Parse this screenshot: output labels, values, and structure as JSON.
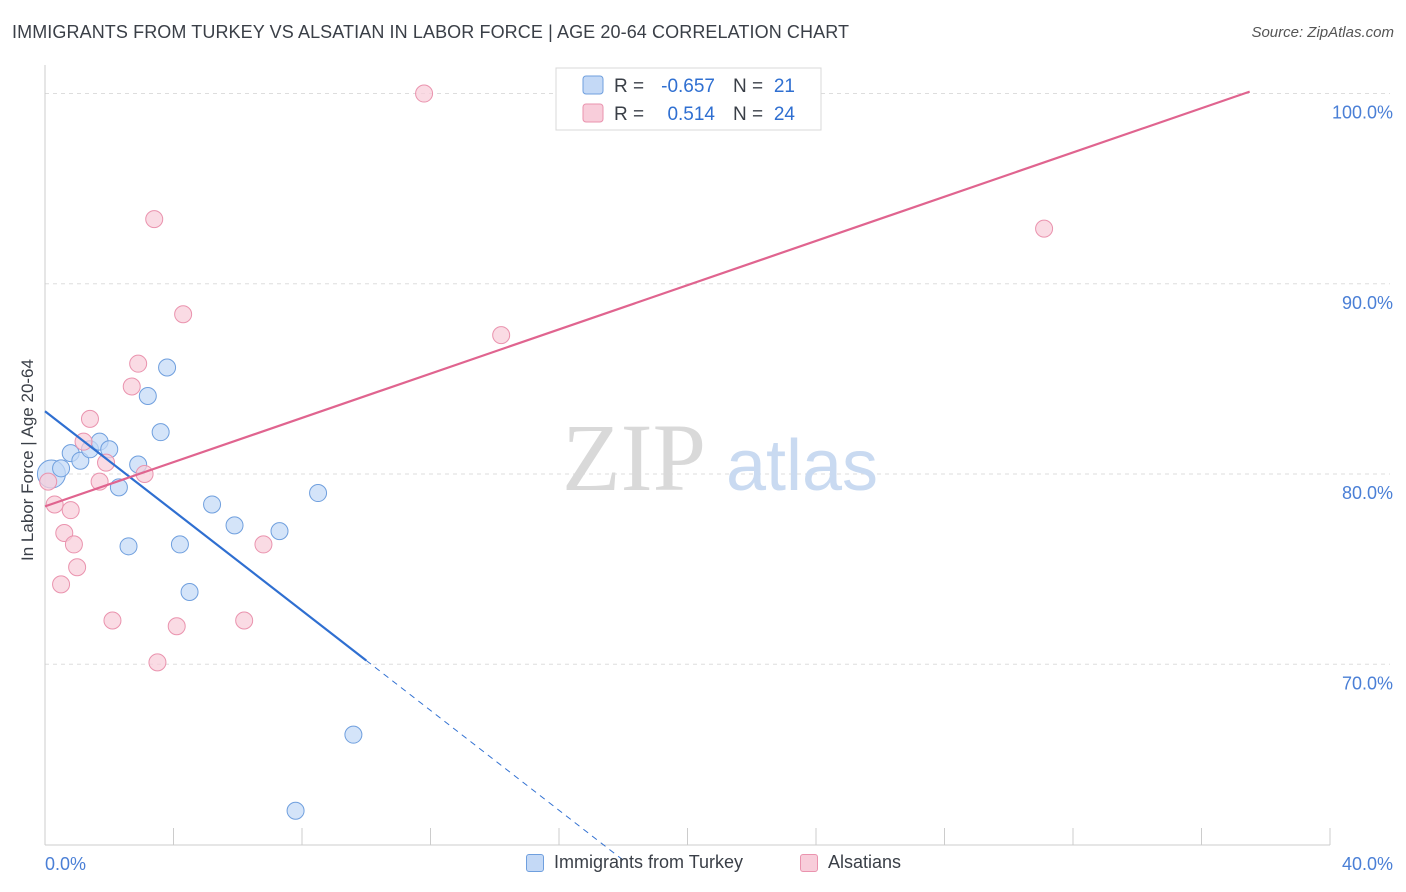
{
  "title": "IMMIGRANTS FROM TURKEY VS ALSATIAN IN LABOR FORCE | AGE 20-64 CORRELATION CHART",
  "source": "Source: ZipAtlas.com",
  "watermark": {
    "zip": "ZIP",
    "atlas": "atlas"
  },
  "colors": {
    "blue_fill": "#c4d9f6",
    "blue_stroke": "#6f9fde",
    "blue_line": "#2f6fd1",
    "pink_fill": "#f8cdda",
    "pink_stroke": "#ea93ae",
    "pink_line": "#e0648f",
    "tick_text": "#4a7fd6",
    "grid": "#dddddd"
  },
  "legend_box": {
    "rows": [
      {
        "r_label": "R =",
        "r_value": "-0.657",
        "n_label": "N =",
        "n_value": "21",
        "series": "blue"
      },
      {
        "r_label": "R =",
        "r_value": "0.514",
        "n_label": "N =",
        "n_value": "24",
        "series": "pink"
      }
    ]
  },
  "chart_data": {
    "type": "scatter",
    "title": "IMMIGRANTS FROM TURKEY VS ALSATIAN IN LABOR FORCE | AGE 20-64 CORRELATION CHART",
    "xlabel": "",
    "ylabel": "In Labor Force | Age 20-64",
    "xlim": [
      0,
      40
    ],
    "ylim": [
      60.5,
      101.5
    ],
    "x_tick_labels": [
      {
        "value": 0,
        "label": "0.0%"
      },
      {
        "value": 40,
        "label": "40.0%"
      }
    ],
    "y_tick_labels": [
      {
        "value": 100,
        "label": "100.0%"
      },
      {
        "value": 90,
        "label": "90.0%"
      },
      {
        "value": 80,
        "label": "80.0%"
      },
      {
        "value": 70,
        "label": "70.0%"
      }
    ],
    "series": [
      {
        "name": "Immigrants from Turkey",
        "color": "blue",
        "points": [
          [
            0.2,
            80.0
          ],
          [
            0.5,
            80.3
          ],
          [
            0.8,
            81.1
          ],
          [
            1.1,
            80.7
          ],
          [
            1.4,
            81.3
          ],
          [
            1.7,
            81.7
          ],
          [
            2.0,
            81.3
          ],
          [
            2.3,
            79.3
          ],
          [
            2.6,
            76.2
          ],
          [
            2.9,
            80.5
          ],
          [
            3.2,
            84.1
          ],
          [
            3.6,
            82.2
          ],
          [
            3.8,
            85.6
          ],
          [
            4.2,
            76.3
          ],
          [
            4.5,
            73.8
          ],
          [
            5.2,
            78.4
          ],
          [
            5.9,
            77.3
          ],
          [
            7.3,
            77.0
          ],
          [
            7.8,
            62.3
          ],
          [
            8.5,
            79.0
          ],
          [
            9.6,
            66.3
          ]
        ],
        "trend": {
          "x0": 0.0,
          "y0": 83.3,
          "x1": 10.0,
          "y1": 70.2,
          "dash_x1": 18.0,
          "dash_y1": 59.7
        }
      },
      {
        "name": "Alsatians",
        "color": "pink",
        "points": [
          [
            0.1,
            79.6
          ],
          [
            0.3,
            78.4
          ],
          [
            0.5,
            74.2
          ],
          [
            0.6,
            76.9
          ],
          [
            0.8,
            78.1
          ],
          [
            0.9,
            76.3
          ],
          [
            1.0,
            75.1
          ],
          [
            1.2,
            81.7
          ],
          [
            1.4,
            82.9
          ],
          [
            1.7,
            79.6
          ],
          [
            1.9,
            80.6
          ],
          [
            2.1,
            72.3
          ],
          [
            2.7,
            84.6
          ],
          [
            2.9,
            85.8
          ],
          [
            3.1,
            80.0
          ],
          [
            3.4,
            93.4
          ],
          [
            3.5,
            70.1
          ],
          [
            4.1,
            72.0
          ],
          [
            4.3,
            88.4
          ],
          [
            6.2,
            72.3
          ],
          [
            6.8,
            76.3
          ],
          [
            11.8,
            100.0
          ],
          [
            14.2,
            87.3
          ],
          [
            31.1,
            92.9
          ]
        ],
        "trend": {
          "x0": 0.0,
          "y0": 78.3,
          "x1": 37.5,
          "y1": 100.1
        }
      }
    ]
  }
}
